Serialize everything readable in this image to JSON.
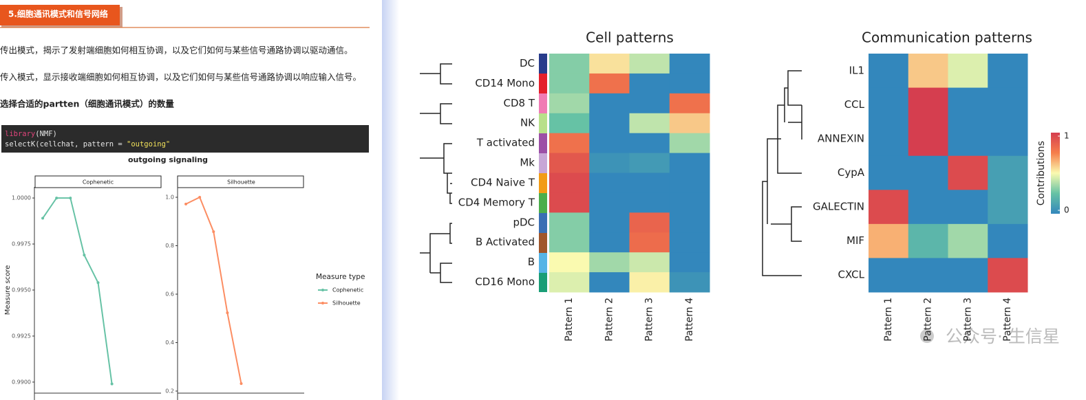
{
  "header": {
    "title": "5.细胞通讯模式和信号网络"
  },
  "paragraphs": [
    "传出模式，揭示了发射端细胞如何相互协调，以及它们如何与某些信号通路协调以驱动通信。",
    "传入模式，显示接收端细胞如何相互协调，以及它们如何与某些信号通路协调以响应输入信号。",
    "选择合适的partten（细胞通讯模式）的数量"
  ],
  "code": {
    "lines": [
      [
        {
          "text": "library",
          "color": "#e0457b"
        },
        {
          "text": "(NMF)",
          "color": "#e6e6e6"
        }
      ],
      [
        {
          "text": "selectK(cellchat, pattern = ",
          "color": "#e6e6e6"
        },
        {
          "text": "\"outgoing\"",
          "color": "#f0e05a"
        }
      ]
    ]
  },
  "chart_data": [
    {
      "type": "line",
      "title": "outgoing signaling",
      "ylabel": "Measure score",
      "legend_title": "Measure type",
      "xlim": [
        1.4,
        10.55
      ],
      "series": [
        {
          "name": "Cophenetic",
          "color": "#66c2a5",
          "x": [
            2,
            3,
            4,
            5,
            6,
            7
          ],
          "values": [
            0.9989,
            1.0,
            1.0,
            0.9969,
            0.9954,
            0.9899
          ],
          "ylim": [
            0.9894,
            1.0006
          ],
          "yticks": [
            {
              "value": 0.99,
              "label": "0.9900"
            },
            {
              "value": 0.9925,
              "label": "0.9925"
            },
            {
              "value": 0.995,
              "label": "0.9950"
            },
            {
              "value": 0.9975,
              "label": "0.9975"
            },
            {
              "value": 1,
              "label": "1.0000"
            }
          ]
        },
        {
          "name": "Silhouette",
          "color": "#fc8d62",
          "x": [
            2,
            3,
            4,
            5,
            6
          ],
          "values": [
            0.972,
            1.0,
            0.858,
            0.523,
            0.231
          ],
          "ylim": [
            0.1915,
            1.0426
          ],
          "yticks": [
            0.2,
            0.4,
            0.6,
            0.8,
            {
              "value": 1,
              "label": "1.0"
            }
          ]
        }
      ]
    },
    {
      "type": "heatmap",
      "title": "Cell patterns",
      "rows": [
        "DC",
        "CD14 Mono",
        "CD8 T",
        "NK",
        "T activated",
        "Mk",
        "CD4 Naive T",
        "CD4 Memory T",
        "pDC",
        "B Activated",
        "B",
        "CD16 Mono"
      ],
      "columns": [
        "Pattern 1",
        "Pattern 2",
        "Pattern 3",
        "Pattern 4"
      ],
      "zlim": [
        0,
        1
      ],
      "colorscale": [
        "#3387bc",
        "#66c2a5",
        "#fafab0",
        "#f67e4b",
        "#d53e4f"
      ],
      "values": [
        [
          0.3,
          0.55,
          0.4,
          0
        ],
        [
          0.3,
          0.8,
          0,
          0
        ],
        [
          0.35,
          0,
          0,
          0.8
        ],
        [
          0.25,
          0,
          0.4,
          0.6
        ],
        [
          0.8,
          0,
          0,
          0.35
        ],
        [
          0.9,
          0.05,
          0.08,
          0
        ],
        [
          0.95,
          0,
          0,
          0
        ],
        [
          0.95,
          0,
          0,
          0
        ],
        [
          0.3,
          0,
          0.85,
          0
        ],
        [
          0.3,
          0,
          0.82,
          0
        ],
        [
          0.5,
          0.35,
          0.42,
          0
        ],
        [
          0.45,
          0,
          0.52,
          0.05
        ]
      ]
    },
    {
      "type": "heatmap",
      "title": "Communication patterns",
      "rows": [
        "IL1",
        "CCL",
        "ANNEXIN",
        "CypA",
        "GALECTIN",
        "MIF",
        "CXCL"
      ],
      "columns": [
        "Pattern 1",
        "Pattern 2",
        "Pattern 3",
        "Pattern 4"
      ],
      "zlim": [
        0,
        1
      ],
      "colorscale": [
        "#3387bc",
        "#66c2a5",
        "#fafab0",
        "#f67e4b",
        "#d53e4f"
      ],
      "legend_title": "Contributions",
      "zticks": [
        0,
        1
      ],
      "values": [
        [
          0,
          0.6,
          0.45,
          0
        ],
        [
          0,
          1,
          0,
          0
        ],
        [
          0,
          1,
          0,
          0
        ],
        [
          0,
          0,
          0.95,
          0.1
        ],
        [
          0.95,
          0,
          0,
          0.1
        ],
        [
          0.65,
          0.2,
          0.35,
          0
        ],
        [
          0,
          0,
          0,
          0.95
        ]
      ]
    }
  ],
  "watermark": "公众号· 生信星"
}
